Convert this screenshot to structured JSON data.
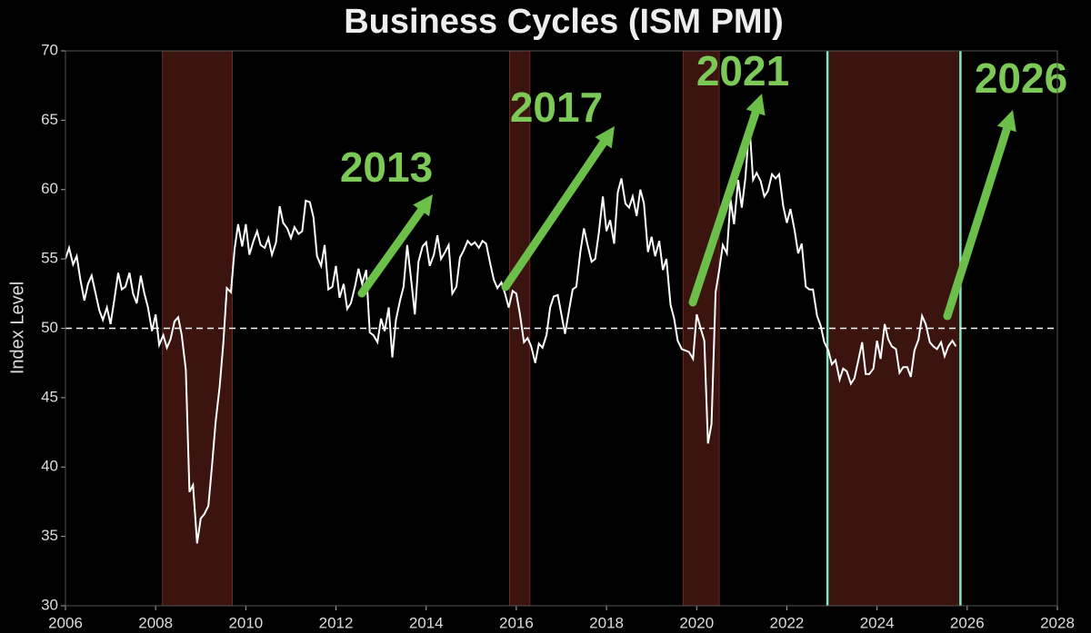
{
  "chart_data": {
    "type": "line",
    "title": "Business Cycles (ISM PMI)",
    "ylabel": "Index Level",
    "x": [
      2006,
      2006.08,
      2006.17,
      2006.25,
      2006.33,
      2006.42,
      2006.5,
      2006.58,
      2006.67,
      2006.75,
      2006.83,
      2006.92,
      2007,
      2007.08,
      2007.17,
      2007.25,
      2007.33,
      2007.42,
      2007.5,
      2007.58,
      2007.67,
      2007.75,
      2007.83,
      2007.92,
      2008,
      2008.08,
      2008.17,
      2008.25,
      2008.33,
      2008.42,
      2008.5,
      2008.58,
      2008.67,
      2008.75,
      2008.83,
      2008.92,
      2009,
      2009.08,
      2009.17,
      2009.25,
      2009.33,
      2009.42,
      2009.5,
      2009.58,
      2009.67,
      2009.75,
      2009.83,
      2009.92,
      2010,
      2010.08,
      2010.17,
      2010.25,
      2010.33,
      2010.42,
      2010.5,
      2010.58,
      2010.67,
      2010.75,
      2010.83,
      2010.92,
      2011,
      2011.08,
      2011.17,
      2011.25,
      2011.33,
      2011.42,
      2011.5,
      2011.58,
      2011.67,
      2011.75,
      2011.83,
      2011.92,
      2012,
      2012.08,
      2012.17,
      2012.25,
      2012.33,
      2012.42,
      2012.5,
      2012.58,
      2012.67,
      2012.75,
      2012.83,
      2012.92,
      2013,
      2013.08,
      2013.17,
      2013.25,
      2013.33,
      2013.42,
      2013.5,
      2013.58,
      2013.67,
      2013.75,
      2013.83,
      2013.92,
      2014,
      2014.08,
      2014.17,
      2014.25,
      2014.33,
      2014.42,
      2014.5,
      2014.58,
      2014.67,
      2014.75,
      2014.83,
      2014.92,
      2015,
      2015.08,
      2015.17,
      2015.25,
      2015.33,
      2015.42,
      2015.5,
      2015.58,
      2015.67,
      2015.75,
      2015.83,
      2015.92,
      2016,
      2016.08,
      2016.17,
      2016.25,
      2016.33,
      2016.42,
      2016.5,
      2016.58,
      2016.67,
      2016.75,
      2016.83,
      2016.92,
      2017,
      2017.08,
      2017.17,
      2017.25,
      2017.33,
      2017.42,
      2017.5,
      2017.58,
      2017.67,
      2017.75,
      2017.83,
      2017.92,
      2018,
      2018.08,
      2018.17,
      2018.25,
      2018.33,
      2018.42,
      2018.5,
      2018.58,
      2018.67,
      2018.75,
      2018.83,
      2018.92,
      2019,
      2019.08,
      2019.17,
      2019.25,
      2019.33,
      2019.42,
      2019.5,
      2019.58,
      2019.67,
      2019.75,
      2019.83,
      2019.92,
      2020,
      2020.08,
      2020.17,
      2020.25,
      2020.33,
      2020.42,
      2020.5,
      2020.58,
      2020.67,
      2020.75,
      2020.83,
      2020.92,
      2021,
      2021.08,
      2021.17,
      2021.25,
      2021.33,
      2021.42,
      2021.5,
      2021.58,
      2021.67,
      2021.75,
      2021.83,
      2021.92,
      2022,
      2022.08,
      2022.17,
      2022.25,
      2022.33,
      2022.42,
      2022.5,
      2022.58,
      2022.67,
      2022.75,
      2022.83,
      2022.92,
      2023,
      2023.08,
      2023.17,
      2023.25,
      2023.33,
      2023.42,
      2023.5,
      2023.58,
      2023.67,
      2023.75,
      2023.83,
      2023.92,
      2024,
      2024.08,
      2024.17,
      2024.25,
      2024.33,
      2024.42,
      2024.5,
      2024.58,
      2024.67,
      2024.75,
      2024.83,
      2024.92,
      2025,
      2025.08,
      2025.17,
      2025.25,
      2025.33,
      2025.42,
      2025.5,
      2025.58,
      2025.67,
      2025.75
    ],
    "values": [
      55.0,
      55.8,
      54.6,
      55.2,
      53.5,
      52.0,
      53.2,
      53.8,
      52.5,
      51.3,
      50.6,
      51.5,
      50.3,
      52.0,
      54.0,
      52.8,
      53.0,
      54.0,
      52.5,
      51.8,
      53.8,
      52.5,
      51.5,
      49.8,
      51.0,
      48.8,
      49.5,
      48.6,
      49.2,
      50.5,
      50.8,
      49.5,
      47.0,
      38.2,
      38.7,
      34.5,
      36.3,
      36.6,
      37.2,
      40.1,
      43.2,
      45.8,
      48.9,
      52.9,
      52.6,
      55.7,
      57.5,
      55.9,
      57.5,
      55.3,
      56.3,
      57.0,
      56.0,
      55.8,
      56.5,
      55.3,
      56.2,
      58.8,
      57.6,
      57.2,
      56.5,
      57.3,
      56.8,
      57.0,
      59.2,
      59.1,
      58.0,
      55.2,
      54.5,
      56.0,
      52.8,
      53.0,
      54.5,
      52.2,
      53.2,
      51.4,
      51.8,
      53.0,
      54.3,
      53.2,
      54.2,
      49.7,
      49.5,
      49.0,
      50.7,
      49.8,
      51.5,
      47.9,
      50.6,
      52.0,
      53.0,
      56.0,
      53.4,
      51.0,
      54.8,
      55.9,
      56.2,
      54.5,
      55.3,
      56.7,
      55.0,
      55.5,
      56.0,
      52.5,
      53.0,
      55.1,
      55.6,
      56.3,
      56.0,
      56.2,
      55.8,
      56.3,
      56.1,
      54.7,
      53.5,
      52.9,
      53.3,
      52.5,
      51.5,
      52.7,
      52.5,
      51.0,
      49.0,
      49.3,
      48.7,
      47.5,
      48.9,
      48.6,
      49.5,
      51.5,
      52.3,
      52.4,
      51.0,
      49.6,
      51.3,
      52.8,
      53.0,
      55.5,
      57.2,
      56.0,
      54.8,
      55.0,
      56.9,
      59.5,
      57.0,
      57.8,
      56.1,
      59.8,
      60.8,
      59.0,
      58.7,
      59.5,
      58.1,
      60.0,
      59.0,
      55.5,
      56.6,
      55.2,
      56.3,
      54.2,
      55.0,
      51.7,
      50.7,
      49.1,
      48.5,
      48.4,
      48.3,
      47.8,
      51.0,
      50.1,
      49.1,
      41.7,
      43.1,
      52.6,
      54.2,
      56.0,
      55.4,
      59.3,
      57.5,
      60.7,
      58.7,
      60.8,
      64.7,
      60.7,
      61.2,
      60.6,
      59.5,
      59.9,
      61.1,
      60.8,
      61.1,
      58.8,
      57.6,
      58.6,
      57.1,
      55.4,
      56.1,
      53.0,
      52.8,
      52.8,
      50.9,
      50.2,
      49.0,
      48.4,
      47.4,
      47.7,
      46.3,
      47.1,
      46.9,
      46.0,
      46.4,
      47.6,
      49.0,
      46.7,
      46.7,
      47.1,
      49.1,
      47.8,
      50.3,
      49.2,
      48.7,
      48.5,
      46.8,
      47.2,
      47.2,
      46.5,
      48.4,
      49.2,
      50.9,
      50.3,
      49.0,
      48.7,
      48.5,
      49.0,
      48.0,
      48.7,
      49.1,
      48.7
    ],
    "color": "#ffffff",
    "xlim": [
      2006,
      2028
    ],
    "xticks": [
      2006,
      2008,
      2010,
      2012,
      2014,
      2016,
      2018,
      2020,
      2022,
      2024,
      2026,
      2028
    ],
    "ylim": [
      30,
      70
    ],
    "yticks": [
      30,
      35,
      40,
      45,
      50,
      55,
      60,
      65,
      70
    ],
    "hline": 50,
    "shaded_ranges": [
      [
        2008.15,
        2009.7
      ],
      [
        2015.85,
        2016.3
      ],
      [
        2019.7,
        2020.5
      ],
      [
        2022.9,
        2025.85
      ]
    ],
    "vlines": [
      2022.9,
      2025.85
    ],
    "annotations": [
      "2013",
      "2017",
      "2021",
      "2026"
    ]
  }
}
